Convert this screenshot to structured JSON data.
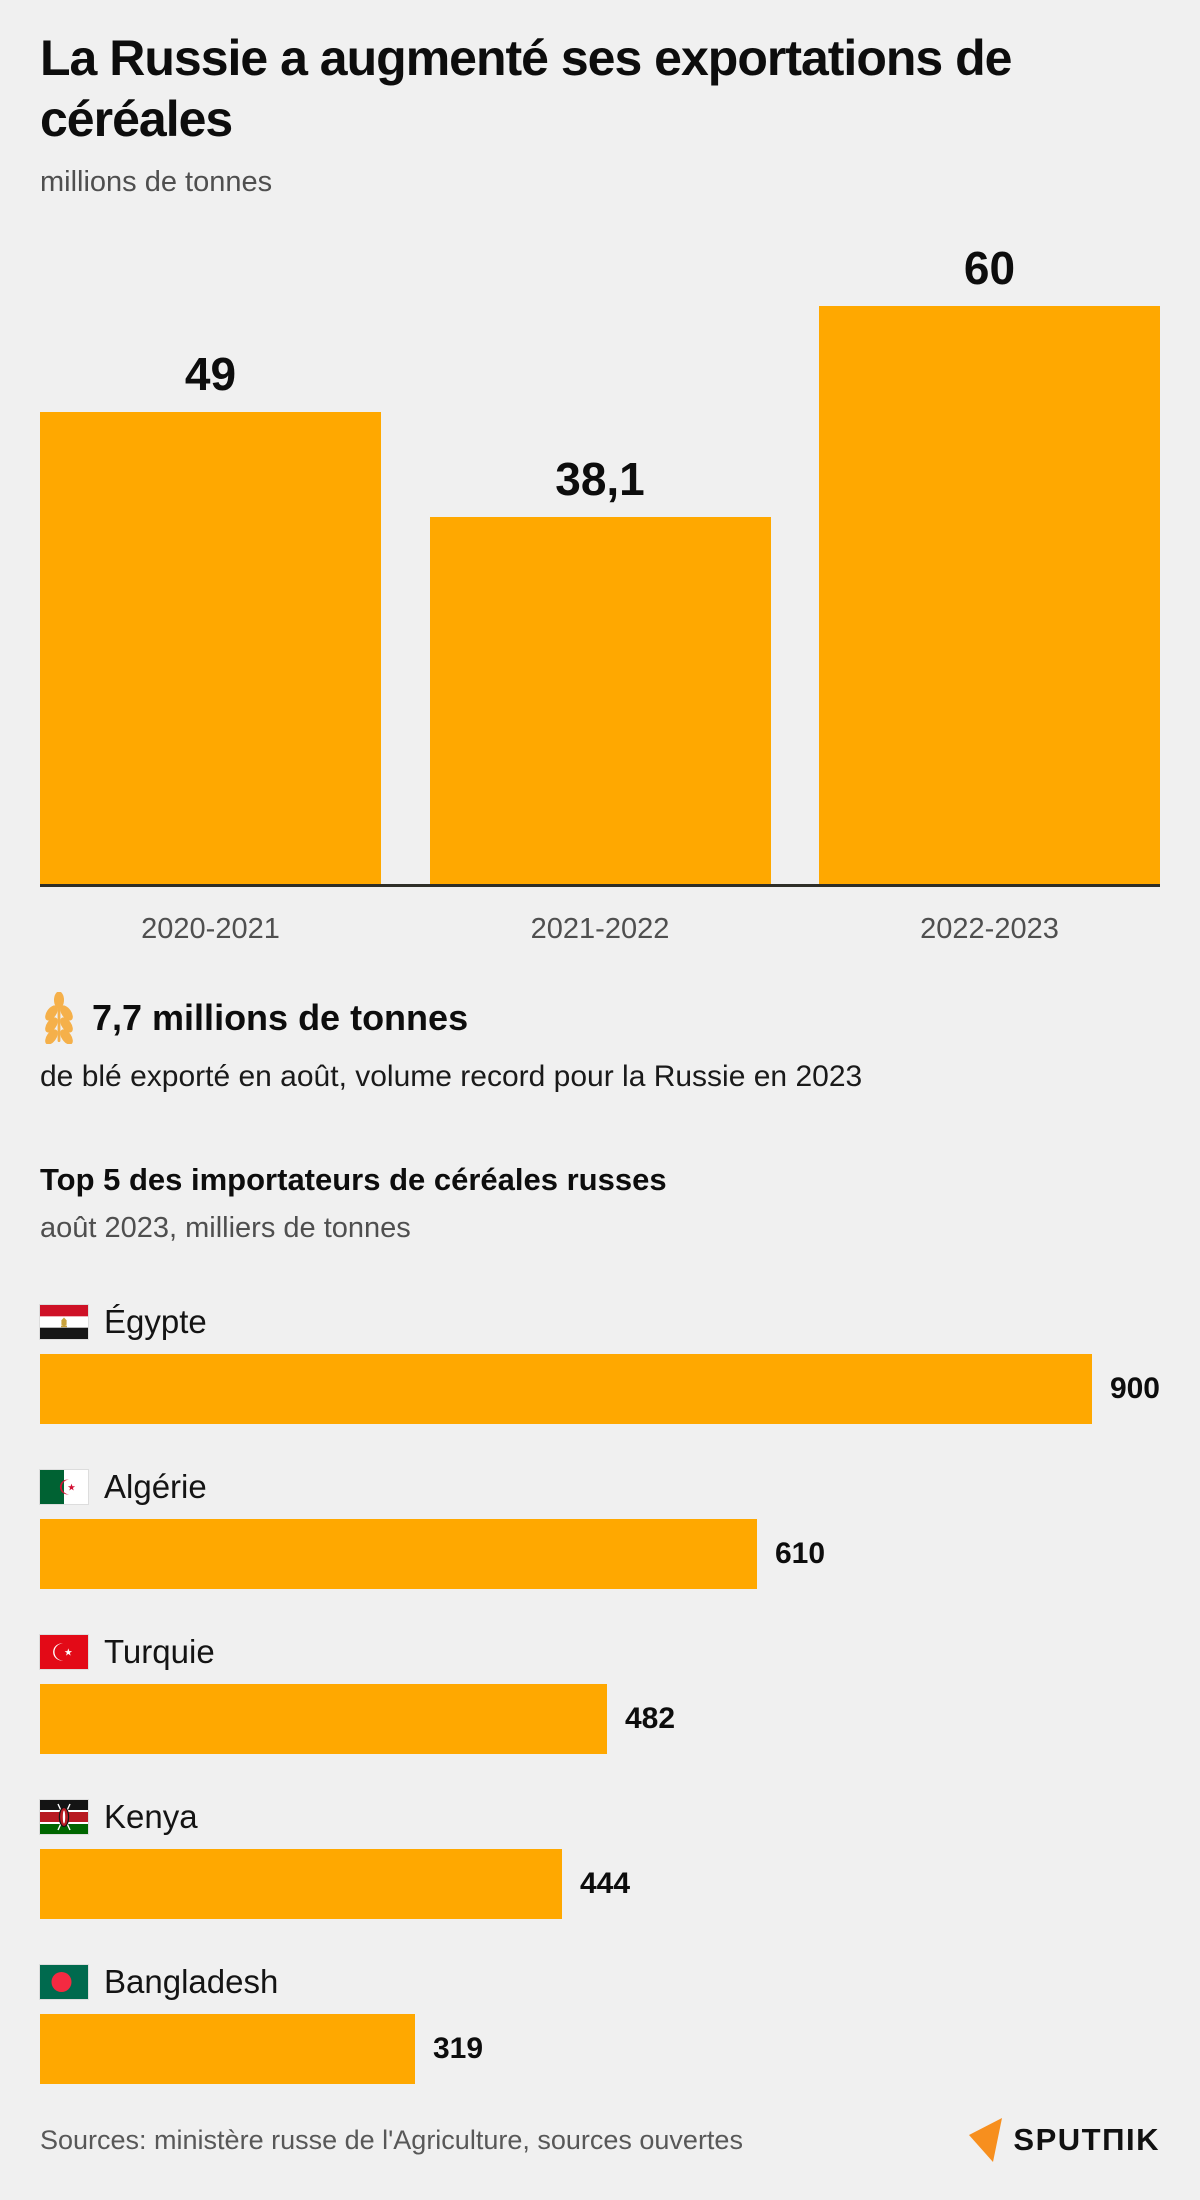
{
  "header": {
    "title": "La Russie a augmenté ses exportations de céréales",
    "subtitle": "millions de tonnes"
  },
  "colors": {
    "accent_orange": "#FFA800",
    "background": "#F0F0F0",
    "baseline": "#2E2E28",
    "text_dark": "#0D0D0D",
    "text_gray": "#4F4F4F"
  },
  "chart_data": [
    {
      "type": "bar",
      "orientation": "vertical",
      "title": "La Russie a augmenté ses exportations de céréales",
      "ylabel": "millions de tonnes",
      "categories": [
        "2020-2021",
        "2021-2022",
        "2022-2023"
      ],
      "values": [
        49,
        38.1,
        60
      ],
      "value_labels": [
        "49",
        "38,1",
        "60"
      ],
      "ylim": [
        0,
        60
      ],
      "grid": false,
      "bar_color": "#FFA800"
    },
    {
      "type": "bar",
      "orientation": "horizontal",
      "title": "Top 5 des importateurs de céréales russes",
      "xlabel": "août 2023, milliers de tonnes",
      "categories": [
        "Égypte",
        "Algérie",
        "Turquie",
        "Kenya",
        "Bangladesh"
      ],
      "values": [
        900,
        610,
        482,
        444,
        319
      ],
      "value_labels": [
        "900",
        "610",
        "482",
        "444",
        "319"
      ],
      "flags": [
        "flag-egypt-icon",
        "flag-algeria-icon",
        "flag-turkey-icon",
        "flag-kenya-icon",
        "flag-bangladesh-icon"
      ],
      "xlim": [
        0,
        900
      ],
      "bar_color": "#FFA800"
    }
  ],
  "highlight": {
    "icon": "wheat-icon",
    "headline": "7,7 millions de tonnes",
    "subtext": "de blé exporté en août, volume record pour la Russie en 2023"
  },
  "top5": {
    "title": "Top 5 des importateurs de céréales russes",
    "subtitle": "août 2023, milliers de tonnes"
  },
  "footer": {
    "sources": "Sources: ministère russe de l'Agriculture, sources ouvertes",
    "logo_text": "SPUTΠIK",
    "logo_icon": "sputnik-arrow-icon"
  }
}
